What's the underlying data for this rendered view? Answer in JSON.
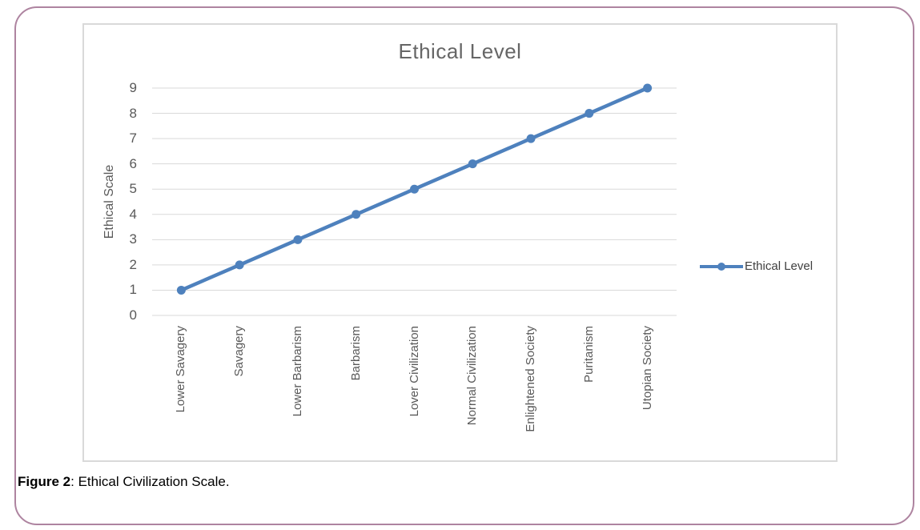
{
  "chart_data": {
    "type": "line",
    "title": "Ethical Level",
    "categories": [
      "Lower Savagery",
      "Savagery",
      "Lower Barbarism",
      "Barbarism",
      "Lover Civilization",
      "Normal Civilization",
      "Enlightened Society",
      "Puritanism",
      "Utopian Society"
    ],
    "series": [
      {
        "name": "Ethical Level",
        "values": [
          1,
          2,
          3,
          4,
          5,
          6,
          7,
          8,
          9
        ]
      }
    ],
    "xlabel": "",
    "ylabel": "Ethical Scale",
    "ylim": [
      0,
      9
    ],
    "yticks": [
      0,
      1,
      2,
      3,
      4,
      5,
      6,
      7,
      8,
      9
    ],
    "grid": true,
    "legend_position": "right-middle",
    "marker": "circle"
  },
  "caption": {
    "label": "Figure 2",
    "rest": ": Ethical Civilization Scale."
  },
  "colors": {
    "series_line": "#4E81BD",
    "gridline": "#D9D9D9",
    "chart_border": "#D9D9D9",
    "outer_border": "#AE84A0",
    "title_text": "#666666",
    "axis_text": "#595959",
    "legend_text": "#404040"
  }
}
